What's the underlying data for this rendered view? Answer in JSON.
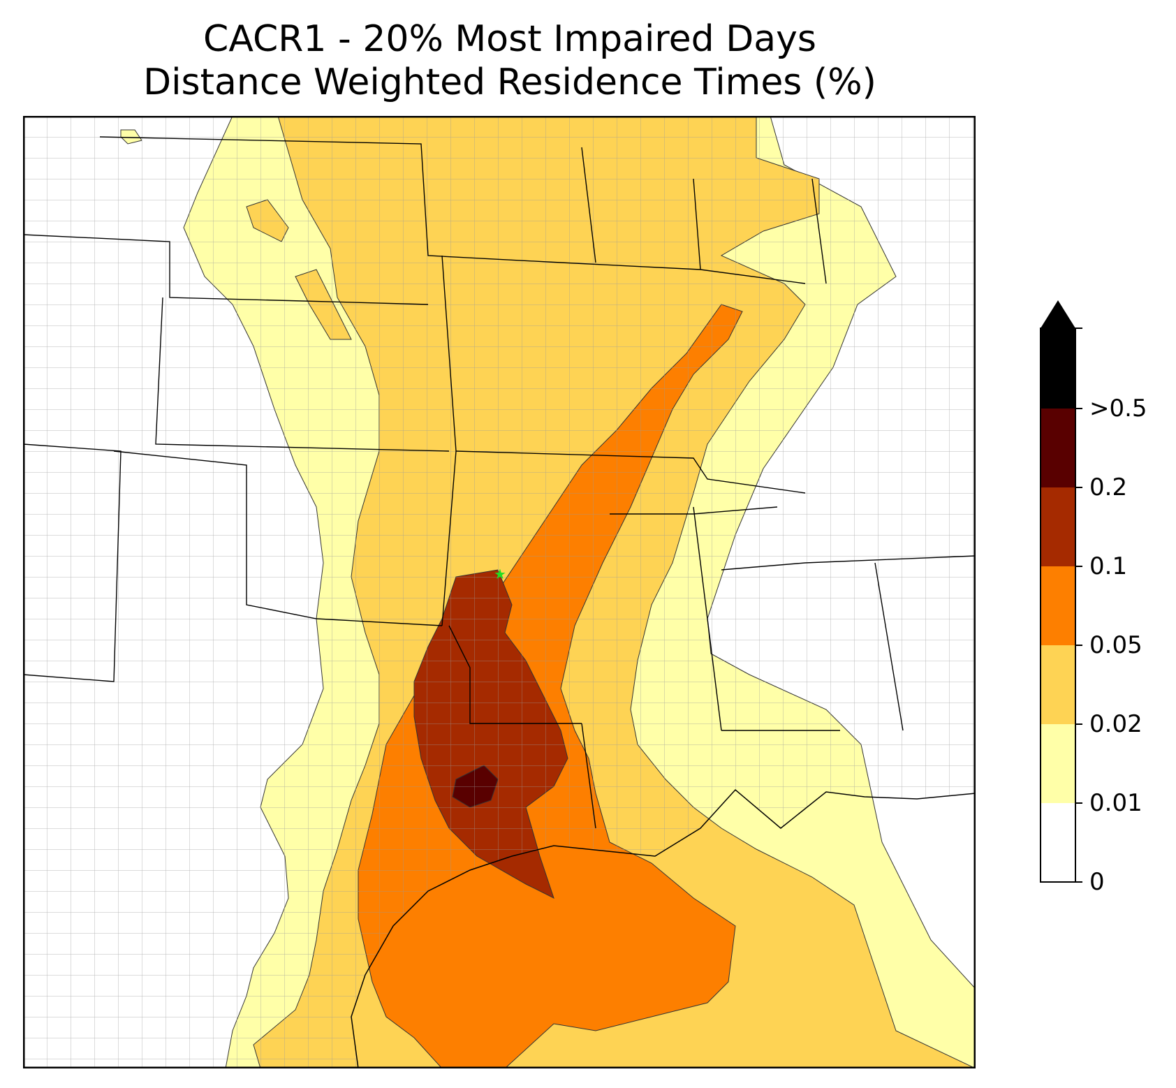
{
  "title": {
    "line1": "CACR1 - 20% Most Impaired Days",
    "line2": "Distance Weighted Residence Times (%)"
  },
  "colors": {
    "land_background": "#ffffff",
    "state_border": "#000000",
    "county_border": "#9a9a9a",
    "bin_0_001": "#ffffff",
    "bin_001_002": "#ffffa8",
    "bin_002_005": "#fed354",
    "bin_005_01": "#fd7f00",
    "bin_01_02": "#a52a00",
    "bin_02_05": "#590000",
    "bin_over_05": "#000000",
    "receptor_marker": "#22dd22"
  },
  "legend": {
    "ticks": [
      "0",
      "0.01",
      "0.02",
      "0.05",
      "0.1",
      "0.2",
      ">0.5"
    ],
    "extend": "max"
  },
  "receptor": {
    "name": "CACR1",
    "marker": "star-icon"
  }
}
